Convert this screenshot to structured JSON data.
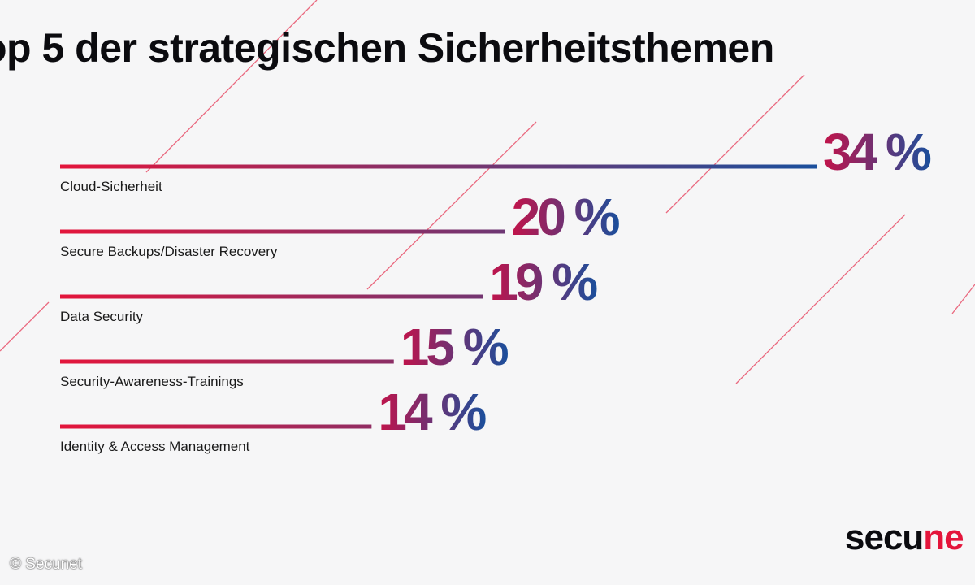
{
  "title": "op 5 der strategischen Sicherheitsthemen",
  "colors": {
    "gradient_start": "#e4153b",
    "gradient_end": "#1a4f9c",
    "deco_line": "#e8506a",
    "text": "#0b0b0f"
  },
  "chart_data": {
    "type": "bar",
    "title": "op 5 der strategischen Sicherheitsthemen",
    "xlabel": "",
    "ylabel": "",
    "unit": "%",
    "categories": [
      "Cloud-Sicherheit",
      "Secure Backups/Disaster Recovery",
      "Data Security",
      "Security-Awareness-Trainings",
      "Identity & Access Management"
    ],
    "values": [
      34,
      20,
      19,
      15,
      14
    ],
    "value_labels": [
      "34 %",
      "20 %",
      "19 %",
      "15 %",
      "14 %"
    ],
    "orientation": "horizontal",
    "grid": false,
    "legend": "none"
  },
  "logo": {
    "text_dark": "secu",
    "text_accent": "ne"
  },
  "copyright": "© Secunet"
}
